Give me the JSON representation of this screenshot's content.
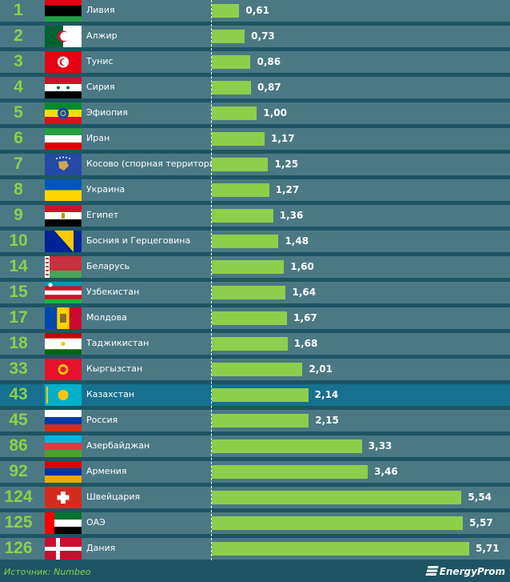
{
  "chart_data": {
    "type": "bar",
    "orientation": "horizontal",
    "xlim": [
      0,
      5.71
    ],
    "rows": [
      {
        "rank": "1",
        "country": "Ливия",
        "value": 0.61,
        "label": "0,61",
        "flag": {
          "t": "h",
          "c": [
            "#e70013",
            "#000000",
            "#000000",
            "#239e46"
          ]
        }
      },
      {
        "rank": "2",
        "country": "Алжир",
        "value": 0.73,
        "label": "0,73",
        "flag": {
          "t": "v",
          "c": [
            "#006233",
            "#ffffff"
          ],
          "o": "crescent"
        }
      },
      {
        "rank": "3",
        "country": "Тунис",
        "value": 0.86,
        "label": "0,86",
        "flag": {
          "t": "h",
          "c": [
            "#e70013"
          ],
          "o": "whitecircle"
        }
      },
      {
        "rank": "4",
        "country": "Сирия",
        "value": 0.87,
        "label": "0,87",
        "flag": {
          "t": "h",
          "c": [
            "#ce1126",
            "#ffffff",
            "#000000"
          ],
          "o": "stars"
        }
      },
      {
        "rank": "5",
        "country": "Эфиопия",
        "value": 1.0,
        "label": "1,00",
        "flag": {
          "t": "h",
          "c": [
            "#078930",
            "#fcdd09",
            "#da121a"
          ],
          "o": "bluecircle"
        }
      },
      {
        "rank": "6",
        "country": "Иран",
        "value": 1.17,
        "label": "1,17",
        "flag": {
          "t": "h",
          "c": [
            "#239f40",
            "#ffffff",
            "#da0000"
          ]
        }
      },
      {
        "rank": "7",
        "country": "Косово (спорная территория)",
        "value": 1.25,
        "label": "1,25",
        "flag": {
          "t": "h",
          "c": [
            "#244aa5"
          ],
          "o": "map"
        }
      },
      {
        "rank": "8",
        "country": "Украина",
        "value": 1.27,
        "label": "1,27",
        "flag": {
          "t": "h",
          "c": [
            "#0057b7",
            "#ffd700"
          ]
        }
      },
      {
        "rank": "9",
        "country": "Египет",
        "value": 1.36,
        "label": "1,36",
        "flag": {
          "t": "h",
          "c": [
            "#ce1126",
            "#ffffff",
            "#000000"
          ],
          "o": "eagle"
        }
      },
      {
        "rank": "10",
        "country": "Босния и Герцеговина",
        "value": 1.48,
        "label": "1,48",
        "flag": {
          "t": "h",
          "c": [
            "#002395"
          ],
          "o": "triangle"
        }
      },
      {
        "rank": "14",
        "country": "Беларусь",
        "value": 1.6,
        "label": "1,60",
        "flag": {
          "t": "h",
          "c": [
            "#c8313e",
            "#c8313e",
            "#4aa657"
          ],
          "o": "ornament"
        }
      },
      {
        "rank": "15",
        "country": "Узбекистан",
        "value": 1.64,
        "label": "1,64",
        "flag": {
          "t": "h",
          "c": [
            "#0099b5",
            "#ce1126",
            "#ffffff",
            "#ce1126",
            "#1eb53a"
          ],
          "o": "uz"
        }
      },
      {
        "rank": "17",
        "country": "Молдова",
        "value": 1.67,
        "label": "1,67",
        "flag": {
          "t": "v",
          "c": [
            "#0046ae",
            "#ffd200",
            "#cc092f"
          ],
          "o": "emblem"
        }
      },
      {
        "rank": "18",
        "country": "Таджикистан",
        "value": 1.68,
        "label": "1,68",
        "flag": {
          "t": "h",
          "c": [
            "#cc0000",
            "#ffffff",
            "#ffffff",
            "#006600"
          ],
          "o": "crown"
        }
      },
      {
        "rank": "33",
        "country": "Кыргызстан",
        "value": 2.01,
        "label": "2,01",
        "flag": {
          "t": "h",
          "c": [
            "#e8112d"
          ],
          "o": "sun"
        }
      },
      {
        "rank": "43",
        "country": "Казахстан",
        "value": 2.14,
        "label": "2,14",
        "highlight": true,
        "flag": {
          "t": "h",
          "c": [
            "#00afca"
          ],
          "o": "sun"
        }
      },
      {
        "rank": "45",
        "country": "Россия",
        "value": 2.15,
        "label": "2,15",
        "flag": {
          "t": "h",
          "c": [
            "#ffffff",
            "#0039a6",
            "#d52b1e"
          ]
        }
      },
      {
        "rank": "86",
        "country": "Азербайджан",
        "value": 3.33,
        "label": "3,33",
        "flag": {
          "t": "h",
          "c": [
            "#00b5e2",
            "#ef3340",
            "#509e2f"
          ]
        }
      },
      {
        "rank": "92",
        "country": "Армения",
        "value": 3.46,
        "label": "3,46",
        "flag": {
          "t": "h",
          "c": [
            "#d90012",
            "#0033a0",
            "#f2a800"
          ]
        }
      },
      {
        "rank": "124",
        "country": "Швейцария",
        "value": 5.54,
        "label": "5,54",
        "flag": {
          "t": "h",
          "c": [
            "#d52b1e"
          ],
          "o": "cross"
        }
      },
      {
        "rank": "125",
        "country": "ОАЭ",
        "value": 5.57,
        "label": "5,57",
        "flag": {
          "t": "h",
          "c": [
            "#00732f",
            "#ffffff",
            "#000000"
          ],
          "o": "uae"
        }
      },
      {
        "rank": "126",
        "country": "Дания",
        "value": 5.71,
        "label": "5,71",
        "flag": {
          "t": "h",
          "c": [
            "#c8102e"
          ],
          "o": "nordic"
        }
      }
    ]
  },
  "footer": {
    "source": "Источник: Numbeo",
    "logo": "EnergyProm"
  }
}
